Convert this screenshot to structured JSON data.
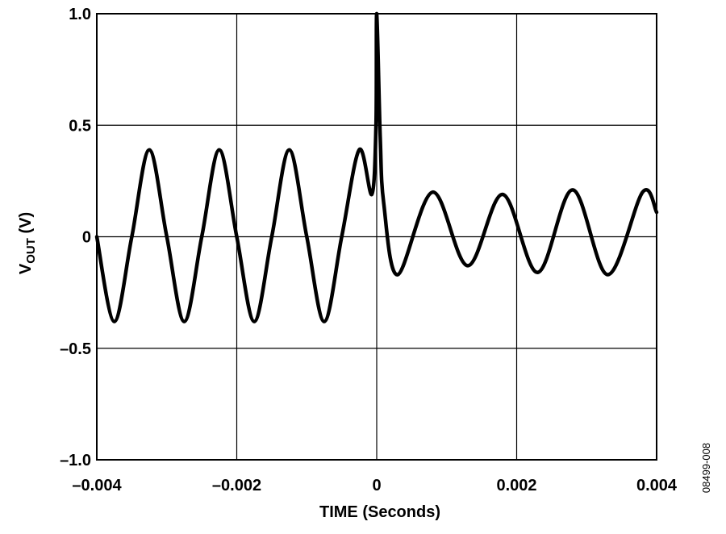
{
  "chart_data": {
    "type": "line",
    "title": "",
    "xlabel": "TIME (Seconds)",
    "ylabel": {
      "prefix": "V",
      "subscript": "OUT",
      "suffix": " (V)"
    },
    "figure_id": "08499-008",
    "xlim": [
      -0.004,
      0.004
    ],
    "ylim": [
      -1.0,
      1.0
    ],
    "grid": true,
    "legend": "none",
    "line_color": "#000000",
    "x_ticks": [
      -0.004,
      -0.002,
      0,
      0.002,
      0.004
    ],
    "x_tick_labels": [
      "–0.004",
      "–0.002",
      "0",
      "0.002",
      "0.004"
    ],
    "y_ticks": [
      1.0,
      0.5,
      0,
      -0.5,
      -1.0
    ],
    "y_tick_labels": [
      "1.0",
      "0.5",
      "0",
      "–0.5",
      "–1.0"
    ],
    "series": [
      {
        "x": [
          -0.004,
          -0.00375,
          -0.0035,
          -0.00325,
          -0.003,
          -0.00275,
          -0.0025,
          -0.00225,
          -0.002,
          -0.00175,
          -0.0015,
          -0.00125,
          -0.001,
          -0.00075,
          -0.0005,
          -0.00025,
          -7e-05,
          -1e-05,
          0.0,
          5e-05,
          0.0001,
          0.0003,
          0.0008,
          0.0013,
          0.0018,
          0.0023,
          0.0028,
          0.0033,
          0.0038,
          0.004
        ],
        "y": [
          0.0,
          -0.38,
          0.0,
          0.39,
          0.0,
          -0.38,
          0.0,
          0.39,
          0.0,
          -0.38,
          0.0,
          0.39,
          0.0,
          -0.38,
          0.0,
          0.39,
          0.19,
          0.5,
          1.0,
          0.45,
          0.15,
          -0.17,
          0.2,
          -0.13,
          0.19,
          -0.16,
          0.21,
          -0.17,
          0.2,
          0.11
        ]
      }
    ]
  }
}
